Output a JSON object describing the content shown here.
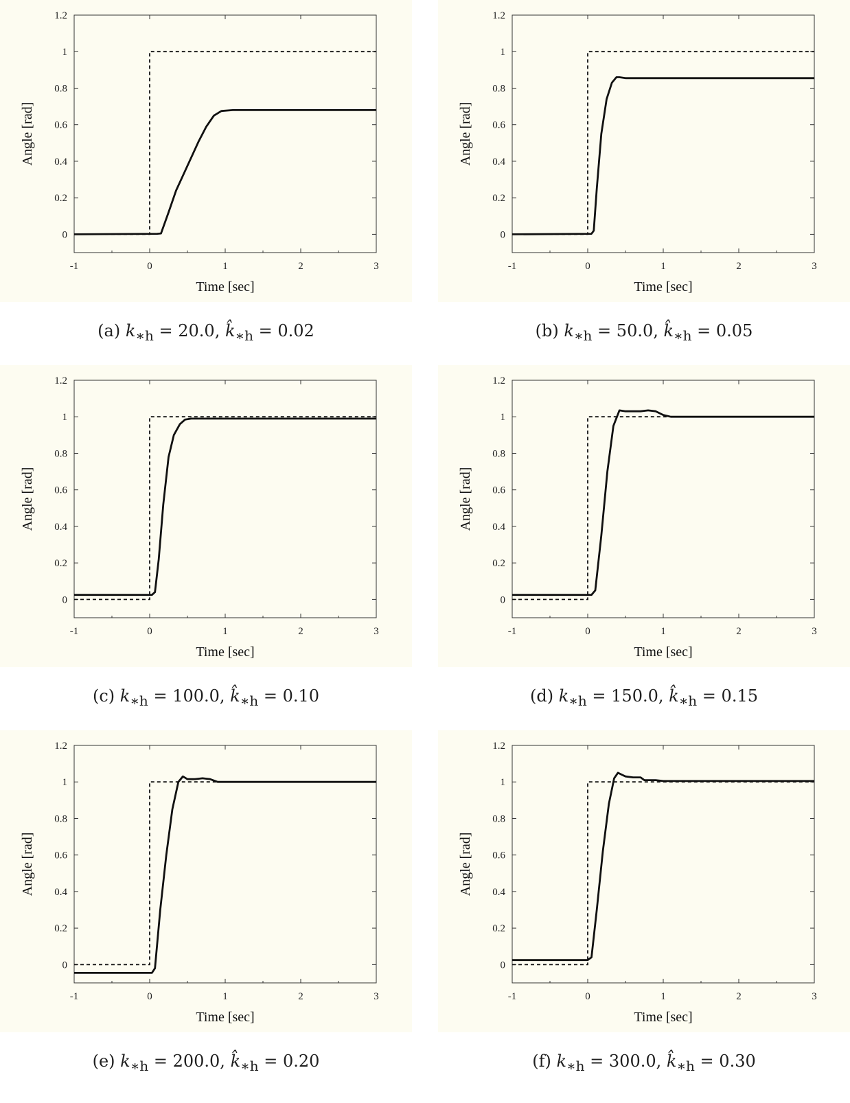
{
  "panels": [
    {
      "caption_letter": "(a)",
      "caption_k": "20.0",
      "caption_khat": "0.02",
      "chart_data": {
        "type": "line",
        "xlabel": "Time [sec]",
        "ylabel": "Angle [rad]",
        "xlim": [
          -1,
          3
        ],
        "ylim": [
          -0.1,
          1.2
        ],
        "xticks": [
          "-1",
          "0",
          "1",
          "2",
          "3"
        ],
        "yticks": [
          "0",
          "0.2",
          "0.4",
          "0.6",
          "0.8",
          "1",
          "1.2"
        ],
        "series": [
          {
            "style": "dashed",
            "x": [
              -1,
              0,
              0,
              3
            ],
            "y": [
              0,
              0,
              1,
              1
            ]
          },
          {
            "style": "solid",
            "x": [
              -1,
              0.1,
              0.15,
              0.25,
              0.35,
              0.45,
              0.55,
              0.65,
              0.75,
              0.85,
              0.95,
              1.1,
              1.5,
              2.0,
              2.5,
              3.0
            ],
            "y": [
              0,
              0.003,
              0.005,
              0.12,
              0.24,
              0.33,
              0.42,
              0.51,
              0.59,
              0.65,
              0.675,
              0.68,
              0.68,
              0.68,
              0.68,
              0.68
            ]
          }
        ]
      }
    },
    {
      "caption_letter": "(b)",
      "caption_k": "50.0",
      "caption_khat": "0.05",
      "chart_data": {
        "type": "line",
        "xlabel": "Time [sec]",
        "ylabel": "Angle [rad]",
        "xlim": [
          -1,
          3
        ],
        "ylim": [
          -0.1,
          1.2
        ],
        "xticks": [
          "-1",
          "0",
          "1",
          "2",
          "3"
        ],
        "yticks": [
          "0",
          "0.2",
          "0.4",
          "0.6",
          "0.8",
          "1",
          "1.2"
        ],
        "series": [
          {
            "style": "dashed",
            "x": [
              -1,
              0,
              0,
              3
            ],
            "y": [
              0,
              0,
              1,
              1
            ]
          },
          {
            "style": "solid",
            "x": [
              -1,
              0.05,
              0.08,
              0.12,
              0.18,
              0.25,
              0.32,
              0.38,
              0.42,
              0.5,
              1.0,
              2.0,
              3.0
            ],
            "y": [
              0,
              0.003,
              0.02,
              0.25,
              0.55,
              0.74,
              0.83,
              0.86,
              0.86,
              0.855,
              0.855,
              0.855,
              0.855
            ]
          }
        ]
      }
    },
    {
      "caption_letter": "(c)",
      "caption_k": "100.0",
      "caption_khat": "0.10",
      "chart_data": {
        "type": "line",
        "xlabel": "Time [sec]",
        "ylabel": "Angle [rad]",
        "xlim": [
          -1,
          3
        ],
        "ylim": [
          -0.1,
          1.2
        ],
        "xticks": [
          "-1",
          "0",
          "1",
          "2",
          "3"
        ],
        "yticks": [
          "0",
          "0.2",
          "0.4",
          "0.6",
          "0.8",
          "1",
          "1.2"
        ],
        "series": [
          {
            "style": "dashed",
            "x": [
              -1,
              0,
              0,
              3
            ],
            "y": [
              0,
              0,
              1,
              1
            ]
          },
          {
            "style": "solid",
            "x": [
              -1,
              0.03,
              0.07,
              0.12,
              0.18,
              0.25,
              0.32,
              0.4,
              0.47,
              0.55,
              1.0,
              2.0,
              3.0
            ],
            "y": [
              0.025,
              0.025,
              0.04,
              0.22,
              0.52,
              0.78,
              0.9,
              0.96,
              0.985,
              0.99,
              0.99,
              0.99,
              0.99
            ]
          }
        ]
      }
    },
    {
      "caption_letter": "(d)",
      "caption_k": "150.0",
      "caption_khat": "0.15",
      "chart_data": {
        "type": "line",
        "xlabel": "Time [sec]",
        "ylabel": "Angle [rad]",
        "xlim": [
          -1,
          3
        ],
        "ylim": [
          -0.1,
          1.2
        ],
        "xticks": [
          "-1",
          "0",
          "1",
          "2",
          "3"
        ],
        "yticks": [
          "0",
          "0.2",
          "0.4",
          "0.6",
          "0.8",
          "1",
          "1.2"
        ],
        "series": [
          {
            "style": "dashed",
            "x": [
              -1,
              0,
              0,
              3
            ],
            "y": [
              0,
              0,
              1,
              1
            ]
          },
          {
            "style": "solid",
            "x": [
              -1,
              0.05,
              0.1,
              0.18,
              0.26,
              0.34,
              0.42,
              0.5,
              0.6,
              0.7,
              0.8,
              0.9,
              1.0,
              1.1,
              1.5,
              2.0,
              3.0
            ],
            "y": [
              0.025,
              0.025,
              0.05,
              0.35,
              0.7,
              0.95,
              1.035,
              1.03,
              1.03,
              1.03,
              1.035,
              1.03,
              1.01,
              1.0,
              1.0,
              1.0,
              1.0
            ]
          }
        ]
      }
    },
    {
      "caption_letter": "(e)",
      "caption_k": "200.0",
      "caption_khat": "0.20",
      "chart_data": {
        "type": "line",
        "xlabel": "Time [sec]",
        "ylabel": "Angle [rad]",
        "xlim": [
          -1,
          3
        ],
        "ylim": [
          -0.1,
          1.2
        ],
        "xticks": [
          "-1",
          "0",
          "1",
          "2",
          "3"
        ],
        "yticks": [
          "0",
          "0.2",
          "0.4",
          "0.6",
          "0.8",
          "1",
          "1.2"
        ],
        "series": [
          {
            "style": "dashed",
            "x": [
              -1,
              0,
              0,
              3
            ],
            "y": [
              0,
              0,
              1,
              1
            ]
          },
          {
            "style": "solid",
            "x": [
              -1,
              0.03,
              0.07,
              0.14,
              0.22,
              0.3,
              0.38,
              0.44,
              0.5,
              0.6,
              0.7,
              0.8,
              0.9,
              1.0,
              1.5,
              2.0,
              3.0
            ],
            "y": [
              -0.045,
              -0.045,
              -0.02,
              0.3,
              0.6,
              0.85,
              1.0,
              1.03,
              1.015,
              1.015,
              1.02,
              1.015,
              1.0,
              1.0,
              1.0,
              1.0,
              1.0
            ]
          }
        ]
      }
    },
    {
      "caption_letter": "(f)",
      "caption_k": "300.0",
      "caption_khat": "0.30",
      "chart_data": {
        "type": "line",
        "xlabel": "Time [sec]",
        "ylabel": "Angle [rad]",
        "xlim": [
          -1,
          3
        ],
        "ylim": [
          -0.1,
          1.2
        ],
        "xticks": [
          "-1",
          "0",
          "1",
          "2",
          "3"
        ],
        "yticks": [
          "0",
          "0.2",
          "0.4",
          "0.6",
          "0.8",
          "1",
          "1.2"
        ],
        "series": [
          {
            "style": "dashed",
            "x": [
              -1,
              0,
              0,
              3
            ],
            "y": [
              0,
              0,
              1,
              1
            ]
          },
          {
            "style": "solid",
            "x": [
              -1,
              0.0,
              0.05,
              0.12,
              0.2,
              0.28,
              0.35,
              0.4,
              0.45,
              0.5,
              0.6,
              0.7,
              0.75,
              0.8,
              0.9,
              1.0,
              1.5,
              2.0,
              3.0
            ],
            "y": [
              0.025,
              0.025,
              0.04,
              0.3,
              0.62,
              0.88,
              1.02,
              1.05,
              1.04,
              1.03,
              1.025,
              1.025,
              1.01,
              1.01,
              1.01,
              1.005,
              1.005,
              1.005,
              1.005
            ]
          }
        ]
      }
    }
  ],
  "style": {
    "plot_background": "#fdfcf1",
    "line_color": "#111111"
  }
}
